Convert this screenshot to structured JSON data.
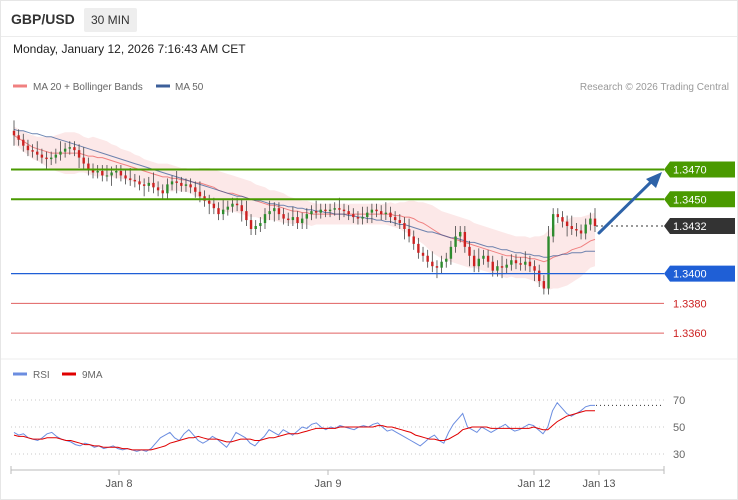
{
  "header": {
    "symbol": "GBP/USD",
    "timeframe": "30 MIN"
  },
  "datetime": "Monday, January 12, 2026 7:16:43 AM CET",
  "copyright": "Research © 2026 Trading Central",
  "colors": {
    "bollinger": "#f08080",
    "ma50": "#3c5f9a",
    "green_level": "#4a9a00",
    "blue_level": "#1f5fd6",
    "red_level": "#e06060",
    "price": "#333333",
    "rsi": "#6b8de0",
    "rsi_ma": "#e00000",
    "arrow": "#2e63a8"
  },
  "chart_data": [
    {
      "type": "line",
      "title": "",
      "instrument": "GBP/USD",
      "interval": "30 MIN",
      "series_style": "candlestick",
      "legend": [
        "MA 20 + Bollinger Bands",
        "MA 50"
      ],
      "legend_placement": "top-left",
      "x_ticks": [
        "Jan 8",
        "Jan 9",
        "Jan 12",
        "Jan 13"
      ],
      "ylim": [
        1.335,
        1.351
      ],
      "levels": [
        {
          "value": 1.347,
          "label": "1.3470",
          "kind": "resistance"
        },
        {
          "value": 1.345,
          "label": "1.3450",
          "kind": "resistance"
        },
        {
          "value": 1.3432,
          "label": "1.3432",
          "kind": "last-price"
        },
        {
          "value": 1.34,
          "label": "1.3400",
          "kind": "pivot"
        },
        {
          "value": 1.338,
          "label": "1.3380",
          "kind": "support"
        },
        {
          "value": 1.336,
          "label": "1.3360",
          "kind": "support"
        }
      ],
      "close": [
        1.3493,
        1.349,
        1.3486,
        1.3483,
        1.3482,
        1.348,
        1.3478,
        1.3477,
        1.3478,
        1.348,
        1.3482,
        1.3484,
        1.3485,
        1.3483,
        1.3478,
        1.3474,
        1.347,
        1.3468,
        1.3469,
        1.3466,
        1.3466,
        1.3468,
        1.3469,
        1.3466,
        1.3464,
        1.3463,
        1.3462,
        1.346,
        1.3459,
        1.3461,
        1.3458,
        1.3456,
        1.3454,
        1.346,
        1.3462,
        1.3461,
        1.3459,
        1.346,
        1.3458,
        1.3455,
        1.3452,
        1.3449,
        1.3447,
        1.3444,
        1.344,
        1.3443,
        1.3445,
        1.3447,
        1.3446,
        1.3442,
        1.3436,
        1.343,
        1.3432,
        1.3434,
        1.344,
        1.3442,
        1.3444,
        1.344,
        1.3437,
        1.3436,
        1.3438,
        1.3434,
        1.3437,
        1.344,
        1.3442,
        1.3441,
        1.3443,
        1.3442,
        1.3443,
        1.3444,
        1.3443,
        1.3442,
        1.344,
        1.3438,
        1.3437,
        1.3438,
        1.3441,
        1.3443,
        1.3442,
        1.344,
        1.3441,
        1.3438,
        1.3436,
        1.3434,
        1.343,
        1.3425,
        1.342,
        1.3414,
        1.3412,
        1.3408,
        1.3405,
        1.3404,
        1.3408,
        1.341,
        1.3418,
        1.3425,
        1.3428,
        1.3418,
        1.3412,
        1.3405,
        1.341,
        1.3412,
        1.3408,
        1.3402,
        1.3405,
        1.3404,
        1.3406,
        1.3409,
        1.3407,
        1.3406,
        1.3408,
        1.3405,
        1.3402,
        1.3395,
        1.339,
        1.3425,
        1.344,
        1.3438,
        1.3435,
        1.3432,
        1.343,
        1.3429,
        1.3427,
        1.3433,
        1.3437,
        1.3432
      ],
      "ma20": [
        1.3493,
        1.3491,
        1.3489,
        1.3487,
        1.3485,
        1.3484,
        1.3483,
        1.3482,
        1.3481,
        1.3481,
        1.3481,
        1.3481,
        1.3481,
        1.3481,
        1.3481,
        1.348,
        1.3479,
        1.3479,
        1.3478,
        1.3478,
        1.3477,
        1.3476,
        1.3475,
        1.3474,
        1.3473,
        1.3472,
        1.3471,
        1.347,
        1.3469,
        1.3468,
        1.3467,
        1.3466,
        1.3465,
        1.3465,
        1.3464,
        1.3464,
        1.3463,
        1.3463,
        1.3462,
        1.3461,
        1.3461,
        1.346,
        1.3459,
        1.3458,
        1.3456,
        1.3455,
        1.3454,
        1.3454,
        1.3453,
        1.3452,
        1.3451,
        1.345,
        1.3449,
        1.3448,
        1.3447,
        1.3446,
        1.3446,
        1.3445,
        1.3444,
        1.3443,
        1.3442,
        1.3442,
        1.3441,
        1.3441,
        1.344,
        1.344,
        1.344,
        1.344,
        1.344,
        1.344,
        1.344,
        1.344,
        1.344,
        1.344,
        1.344,
        1.344,
        1.344,
        1.344,
        1.344,
        1.344,
        1.344,
        1.344,
        1.3439,
        1.3439,
        1.3438,
        1.3438,
        1.3437,
        1.3435,
        1.3434,
        1.3432,
        1.343,
        1.3428,
        1.3426,
        1.3425,
        1.3424,
        1.3423,
        1.3422,
        1.3421,
        1.342,
        1.3419,
        1.3418,
        1.3417,
        1.3416,
        1.3415,
        1.3414,
        1.3413,
        1.3412,
        1.3412,
        1.3411,
        1.3411,
        1.3411,
        1.341,
        1.341,
        1.3409,
        1.3408,
        1.3409,
        1.3411,
        1.3412,
        1.3413,
        1.3414,
        1.3416,
        1.3417,
        1.3418,
        1.342,
        1.3422,
        1.3423
      ],
      "ma50": [
        1.3497,
        1.3496,
        1.3496,
        1.3495,
        1.3494,
        1.3494,
        1.3493,
        1.3492,
        1.3492,
        1.3491,
        1.349,
        1.3489,
        1.3488,
        1.3487,
        1.3486,
        1.3485,
        1.3484,
        1.3483,
        1.3482,
        1.3481,
        1.348,
        1.3479,
        1.3478,
        1.3477,
        1.3476,
        1.3475,
        1.3474,
        1.3473,
        1.3472,
        1.3471,
        1.347,
        1.3469,
        1.3468,
        1.3467,
        1.3466,
        1.3465,
        1.3464,
        1.3463,
        1.3462,
        1.3461,
        1.346,
        1.3459,
        1.3458,
        1.3457,
        1.3456,
        1.3455,
        1.3454,
        1.3453,
        1.3452,
        1.3452,
        1.3451,
        1.345,
        1.3449,
        1.3449,
        1.3448,
        1.3447,
        1.3447,
        1.3446,
        1.3446,
        1.3445,
        1.3445,
        1.3444,
        1.3444,
        1.3443,
        1.3443,
        1.3442,
        1.3442,
        1.3441,
        1.3441,
        1.344,
        1.344,
        1.344,
        1.3439,
        1.3439,
        1.3438,
        1.3438,
        1.3437,
        1.3437,
        1.3436,
        1.3436,
        1.3435,
        1.3435,
        1.3434,
        1.3433,
        1.3433,
        1.3432,
        1.3431,
        1.343,
        1.3429,
        1.3428,
        1.3428,
        1.3427,
        1.3426,
        1.3425,
        1.3424,
        1.3424,
        1.3423,
        1.3422,
        1.3421,
        1.3421,
        1.342,
        1.3419,
        1.3418,
        1.3418,
        1.3417,
        1.3416,
        1.3416,
        1.3415,
        1.3414,
        1.3414,
        1.3413,
        1.3413,
        1.3412,
        1.3412,
        1.3411,
        1.3411,
        1.3412,
        1.3412,
        1.3413,
        1.3413,
        1.3414,
        1.3414,
        1.3414,
        1.3415,
        1.3415,
        1.3415
      ],
      "bb_halfwidth": [
        0.0006,
        0.0006,
        0.0007,
        0.0007,
        0.0008,
        0.0008,
        0.0009,
        0.001,
        0.0011,
        0.0012,
        0.0013,
        0.0014,
        0.0014,
        0.0014,
        0.0013,
        0.0012,
        0.0012,
        0.0013,
        0.0013,
        0.0012,
        0.0012,
        0.0011,
        0.0011,
        0.001,
        0.001,
        0.001,
        0.0009,
        0.0009,
        0.0008,
        0.0008,
        0.0008,
        0.0008,
        0.0009,
        0.0009,
        0.0009,
        0.0008,
        0.0008,
        0.0008,
        0.0008,
        0.0009,
        0.001,
        0.0011,
        0.0012,
        0.0012,
        0.0013,
        0.0013,
        0.0013,
        0.0012,
        0.0012,
        0.0012,
        0.0012,
        0.0012,
        0.0011,
        0.0011,
        0.0011,
        0.001,
        0.001,
        0.001,
        0.001,
        0.0009,
        0.0009,
        0.0008,
        0.0008,
        0.0008,
        0.0008,
        0.0007,
        0.0007,
        0.0007,
        0.0007,
        0.0007,
        0.0007,
        0.0007,
        0.0007,
        0.0007,
        0.0007,
        0.0007,
        0.0007,
        0.0007,
        0.0007,
        0.0007,
        0.0007,
        0.0008,
        0.0008,
        0.0009,
        0.001,
        0.0011,
        0.0012,
        0.0013,
        0.0014,
        0.0015,
        0.0016,
        0.0016,
        0.0016,
        0.0016,
        0.0016,
        0.0016,
        0.0016,
        0.0016,
        0.0016,
        0.0015,
        0.0015,
        0.0015,
        0.0015,
        0.0015,
        0.0015,
        0.0015,
        0.0015,
        0.0014,
        0.0014,
        0.0014,
        0.0014,
        0.0014,
        0.0015,
        0.0016,
        0.0018,
        0.002,
        0.0021,
        0.0022,
        0.0022,
        0.0022,
        0.0022,
        0.0021,
        0.002,
        0.0019,
        0.0018,
        0.0018
      ]
    },
    {
      "type": "line",
      "title": "",
      "legend": [
        "RSI",
        "9MA"
      ],
      "legend_placement": "top-left",
      "ylim": [
        20,
        80
      ],
      "y_ticks": [
        70,
        50,
        30
      ],
      "rsi": [
        46,
        44,
        45,
        42,
        41,
        40,
        42,
        45,
        46,
        43,
        41,
        40,
        39,
        37,
        36,
        38,
        37,
        35,
        36,
        34,
        35,
        36,
        34,
        33,
        34,
        33,
        32,
        33,
        32,
        34,
        38,
        42,
        44,
        46,
        42,
        40,
        45,
        48,
        44,
        40,
        38,
        40,
        43,
        41,
        38,
        35,
        40,
        46,
        44,
        42,
        38,
        36,
        40,
        43,
        48,
        46,
        44,
        48,
        46,
        44,
        47,
        50,
        49,
        52,
        53,
        50,
        48,
        50,
        49,
        51,
        50,
        49,
        48,
        50,
        51,
        50,
        52,
        53,
        50,
        47,
        48,
        46,
        44,
        42,
        40,
        38,
        36,
        39,
        42,
        44,
        40,
        38,
        46,
        52,
        56,
        60,
        50,
        48,
        46,
        50,
        48,
        46,
        48,
        50,
        52,
        49,
        47,
        48,
        50,
        52,
        51,
        48,
        45,
        50,
        62,
        68,
        64,
        60,
        58,
        60,
        62,
        65,
        66,
        66
      ],
      "ma9": [
        44,
        43,
        43,
        42,
        41,
        41,
        41,
        42,
        42,
        42,
        41,
        40,
        40,
        39,
        38,
        37,
        37,
        36,
        36,
        35,
        35,
        35,
        35,
        34,
        34,
        33,
        33,
        33,
        33,
        33,
        34,
        35,
        36,
        38,
        39,
        40,
        41,
        42,
        42,
        43,
        42,
        41,
        41,
        41,
        40,
        39,
        39,
        40,
        41,
        41,
        41,
        40,
        40,
        41,
        42,
        42,
        43,
        44,
        45,
        45,
        45,
        46,
        47,
        48,
        49,
        49,
        49,
        49,
        49,
        50,
        50,
        50,
        50,
        50,
        50,
        50,
        50,
        51,
        51,
        50,
        50,
        49,
        48,
        47,
        46,
        44,
        43,
        42,
        41,
        41,
        40,
        40,
        41,
        43,
        45,
        48,
        49,
        50,
        50,
        50,
        50,
        49,
        49,
        49,
        49,
        49,
        49,
        49,
        49,
        49,
        50,
        49,
        48,
        48,
        51,
        54,
        56,
        58,
        59,
        60,
        61,
        62,
        62,
        62
      ],
      "last_value": 66
    }
  ]
}
